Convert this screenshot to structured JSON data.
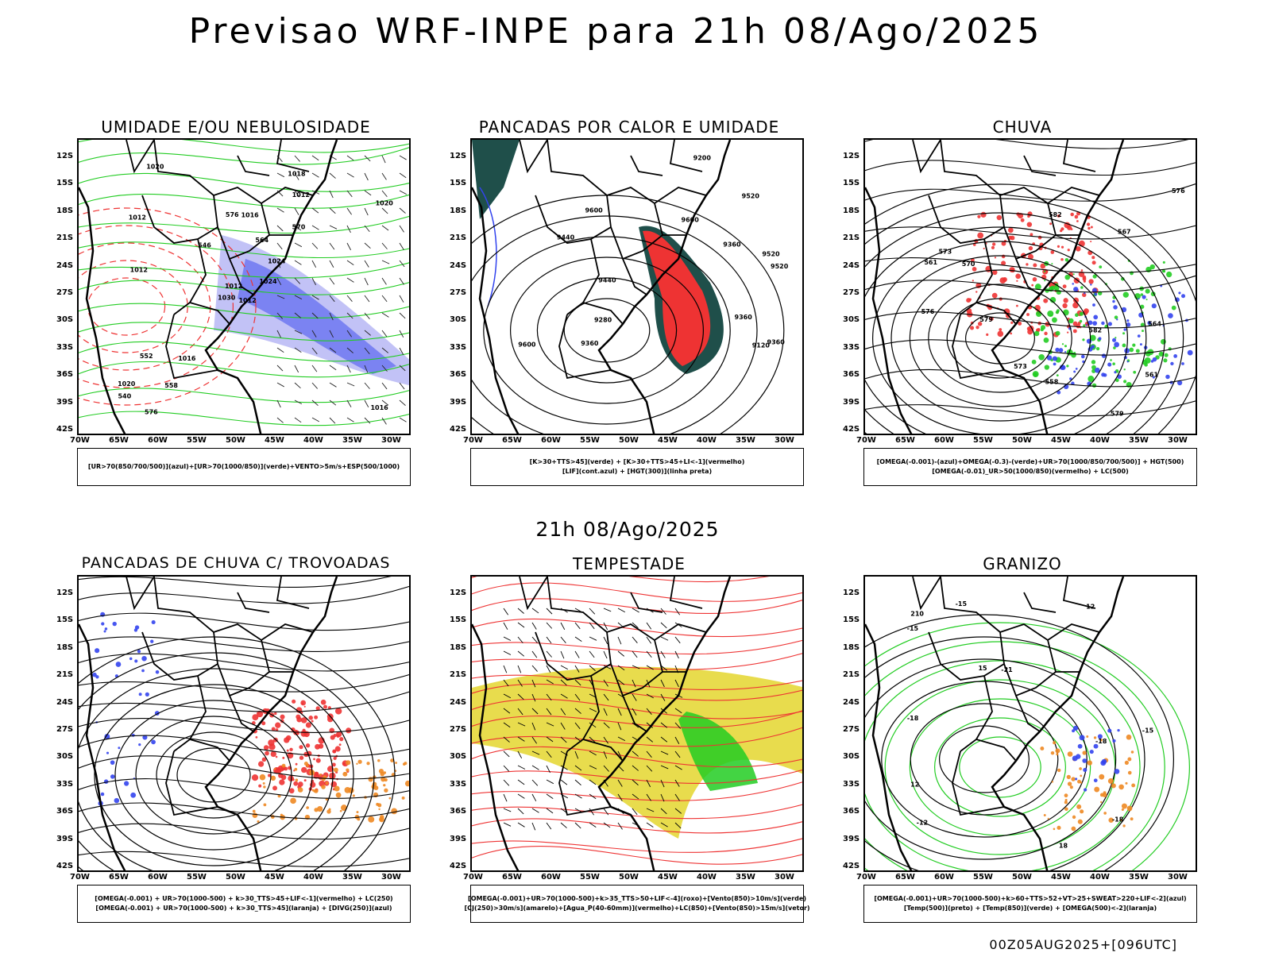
{
  "title": "Previsao WRF-INPE  para 21h 08/Ago/2025",
  "mid_label": "21h 08/Ago/2025",
  "footer": "00Z05AUG2025+[096UTC]",
  "axes": {
    "lat": [
      "12S",
      "15S",
      "18S",
      "21S",
      "24S",
      "27S",
      "30S",
      "33S",
      "36S",
      "39S",
      "42S"
    ],
    "lon": [
      "70W",
      "65W",
      "60W",
      "55W",
      "50W",
      "45W",
      "40W",
      "35W",
      "30W"
    ]
  },
  "colors": {
    "coast": "#000000",
    "blue": "#3344ee",
    "green": "#22cc22",
    "red": "#ee3333",
    "orange": "#ee8822",
    "yellow": "#e6d83a",
    "teal": "#1f4f4a",
    "lavender": "#9a9af0"
  },
  "panels": [
    {
      "id": "umidade",
      "title": "UMIDADE E/OU NEBULOSIDADE",
      "legend": [
        "[UR>70(850/700/500)](azul)+[UR>70(1000/850)](verde)+VENTO>5m/s+ESP(500/1000)"
      ],
      "labels": [
        "1012",
        "1012",
        "1012",
        "1020",
        "1024",
        "1016",
        "1018",
        "1016",
        "1012",
        "1024",
        "1020",
        "1016",
        "1012",
        "1020",
        "1030",
        "570",
        "576",
        "576",
        "564",
        "552",
        "546",
        "540",
        "558"
      ]
    },
    {
      "id": "pancadas",
      "title": "PANCADAS POR CALOR E UMIDADE",
      "legend": [
        "[K>30+TTS>45](verde) + [K>30+TTS>45+LI<-1](vermelho)",
        "[LIF](cont.azul) + [HGT(300)](linha preta)"
      ],
      "labels": [
        "9600",
        "9520",
        "9600",
        "9520",
        "9440",
        "9360",
        "9280",
        "9200",
        "9120",
        "9520",
        "9440",
        "9360",
        "9360",
        "9360",
        "9600"
      ]
    },
    {
      "id": "chuva",
      "title": "CHUVA",
      "legend": [
        "[OMEGA(-0.001)-(azul)+OMEGA(-0.3)-(verde)+UR>70(1000/850/700/500)] + HGT(500)",
        "[OMEGA(-0.01)_UR>50(1000/850)(vermelho) + LC(500)"
      ],
      "labels": [
        "582",
        "582",
        "579",
        "576",
        "573",
        "573",
        "567",
        "561",
        "558",
        "564",
        "561",
        "576",
        "579",
        "570"
      ]
    },
    {
      "id": "trovoadas",
      "title": "PANCADAS DE CHUVA C/ TROVOADAS",
      "legend": [
        "[OMEGA(-0.001) + UR>70(1000-500) + k>30_TTS>45+LIF<-1](vermelho) + LC(250)",
        "[OMEGA(-0.001) + UR>70(1000-500) + k>30_TTS>45](laranja) + [DIVG(250)](azul)"
      ],
      "labels": []
    },
    {
      "id": "tempestade",
      "title": "TEMPESTADE",
      "legend": [
        "[OMEGA(-0.001)+UR>70(1000-500)+k>35_TTS>50+LIF<-4](roxo)+[Vento(850)>10m/s](verde)",
        "[CJ(250)>30m/s](amarelo)+[Agua_P(40-60mm)](vermelho)+LC(850)+[Vento(850)>15m/s](vetor)"
      ],
      "labels": []
    },
    {
      "id": "granizo",
      "title": "GRANIZO",
      "legend": [
        "[OMEGA(-0.001)+UR>70(1000-500)+k>60+TTS>52+VT>25+SWEAT>220+LIF<-2](azul)",
        "[Temp(500)](preto) + [Temp(850)](verde) + [OMEGA(500)<-2](laranja)"
      ],
      "labels": [
        "-18",
        "-15",
        "-12",
        "-15",
        "-21",
        "-18",
        "12",
        "12",
        "15",
        "18",
        "-15",
        "-18",
        "210"
      ]
    }
  ]
}
